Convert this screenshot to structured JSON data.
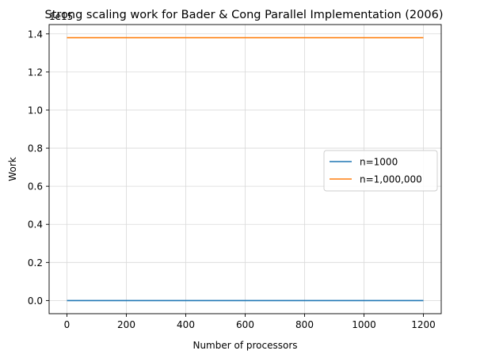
{
  "chart_data": {
    "type": "line",
    "title": "Strong scaling work for Bader & Cong Parallel Implementation  (2006)",
    "xlabel": "Number of processors",
    "ylabel": "Work",
    "offset_text": "1e15",
    "xlim": [
      -60,
      1260
    ],
    "ylim": [
      -0.069,
      1.449
    ],
    "x_ticks": [
      0,
      200,
      400,
      600,
      800,
      1000,
      1200
    ],
    "x_tick_labels": [
      "0",
      "200",
      "400",
      "600",
      "800",
      "1000",
      "1200"
    ],
    "y_ticks": [
      0.0,
      0.2,
      0.4,
      0.6,
      0.8,
      1.0,
      1.2,
      1.4
    ],
    "y_tick_labels": [
      "0.0",
      "0.2",
      "0.4",
      "0.6",
      "0.8",
      "1.0",
      "1.2",
      "1.4"
    ],
    "grid": true,
    "legend_position": "center-right",
    "series": [
      {
        "name": "n=1000",
        "color": "#1f77b4",
        "x": [
          0,
          1200
        ],
        "y": [
          0.0,
          0.0
        ]
      },
      {
        "name": "n=1,000,000",
        "color": "#ff7f0e",
        "x": [
          0,
          1200
        ],
        "y": [
          1.38,
          1.38
        ]
      }
    ]
  }
}
